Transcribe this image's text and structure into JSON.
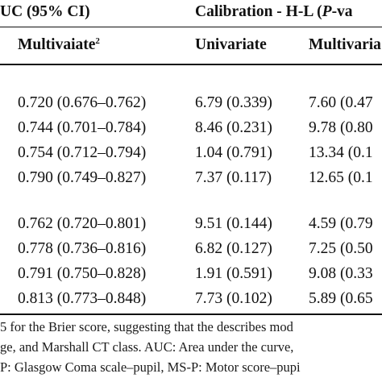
{
  "header": {
    "auc_group": "UC (95% CI)",
    "cal_group_prefix": "Calibration - H-L (",
    "cal_group_p": "P",
    "cal_group_suffix": "-va",
    "col_multivariate_auc": "Multivaiate",
    "col_multivariate_auc_sup": "2",
    "col_univariate": "Univariate",
    "col_multivariate_cal": "Multivaria"
  },
  "groups": [
    {
      "rows": [
        {
          "auc": "0.720 (0.676–0.762)",
          "uni": "6.79 (0.339)",
          "multi": "7.60 (0.47"
        },
        {
          "auc": "0.744 (0.701–0.784)",
          "uni": "8.46 (0.231)",
          "multi": "9.78 (0.80"
        },
        {
          "auc": "0.754 (0.712–0.794)",
          "uni": "1.04 (0.791)",
          "multi": "13.34 (0.1"
        },
        {
          "auc": "0.790 (0.749–0.827)",
          "uni": "7.37 (0.117)",
          "multi": "12.65 (0.1"
        }
      ]
    },
    {
      "rows": [
        {
          "auc": "0.762 (0.720–0.801)",
          "uni": "9.51 (0.144)",
          "multi": "4.59 (0.79"
        },
        {
          "auc": "0.778 (0.736–0.816)",
          "uni": "6.82 (0.127)",
          "multi": "7.25 (0.50"
        },
        {
          "auc": "0.791 (0.750–0.828)",
          "uni": "1.91 (0.591)",
          "multi": "9.08 (0.33"
        },
        {
          "auc": "0.813 (0.773–0.848)",
          "uni": "7.73 (0.102)",
          "multi": "5.89 (0.65"
        }
      ]
    }
  ],
  "footnote": {
    "line1": "5 for the Brier score, suggesting that the describes mod",
    "line2": "ge, and Marshall CT class. AUC: Area under the curve,",
    "line3": "P: Glasgow Coma scale–pupil, MS-P: Motor score–pupi"
  }
}
